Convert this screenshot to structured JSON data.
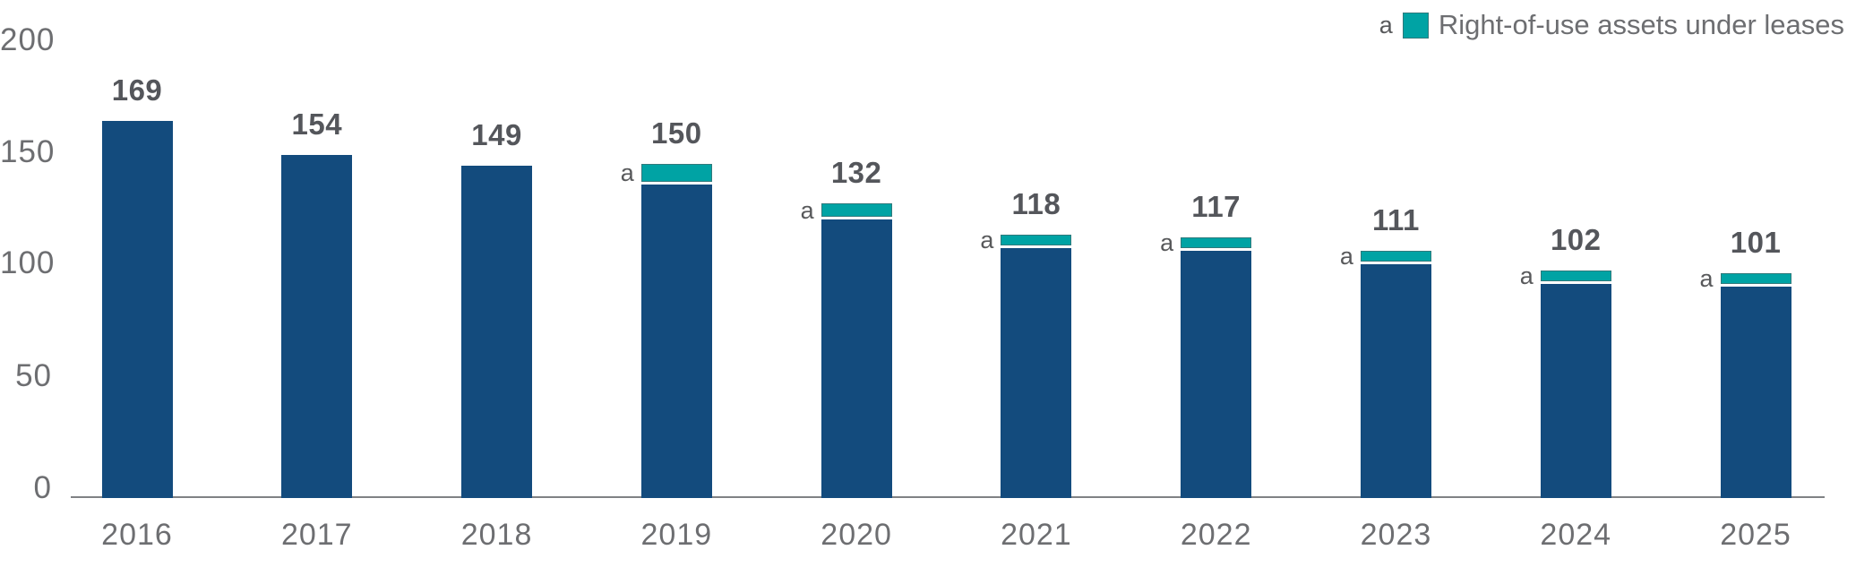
{
  "legend": {
    "marker": "a",
    "label": "Right-of-use assets under leases"
  },
  "colors": {
    "navy": "#134b7d",
    "teal": "#00a3a4",
    "value_label_text": "#54565b",
    "axis_text": "#6d6e71",
    "annotation_text": "#58595b",
    "axis_line": "#808285"
  },
  "chart_data": {
    "type": "bar",
    "stacked": true,
    "title": "",
    "xlabel": "",
    "ylabel": "",
    "categories": [
      "2016",
      "2017",
      "2018",
      "2019",
      "2020",
      "2021",
      "2022",
      "2023",
      "2024",
      "2025"
    ],
    "totals": [
      169,
      154,
      149,
      150,
      132,
      118,
      117,
      111,
      102,
      101
    ],
    "data_labels": [
      "169",
      "154",
      "149",
      "150",
      "132",
      "118",
      "117",
      "111",
      "102",
      "101"
    ],
    "series": [
      {
        "name": "",
        "values": [
          169,
          154,
          149,
          142,
          126,
          113,
          112,
          106,
          97,
          96
        ]
      },
      {
        "name": "Right-of-use assets under leases",
        "values": [
          0,
          0,
          0,
          8,
          6,
          5,
          5,
          5,
          5,
          5
        ]
      }
    ],
    "lease_marker": "a",
    "ylim": [
      0,
      200
    ],
    "y_ticks": [
      "200",
      "150",
      "100",
      "50",
      "0"
    ],
    "grid": false,
    "legend_position": "top-right"
  }
}
